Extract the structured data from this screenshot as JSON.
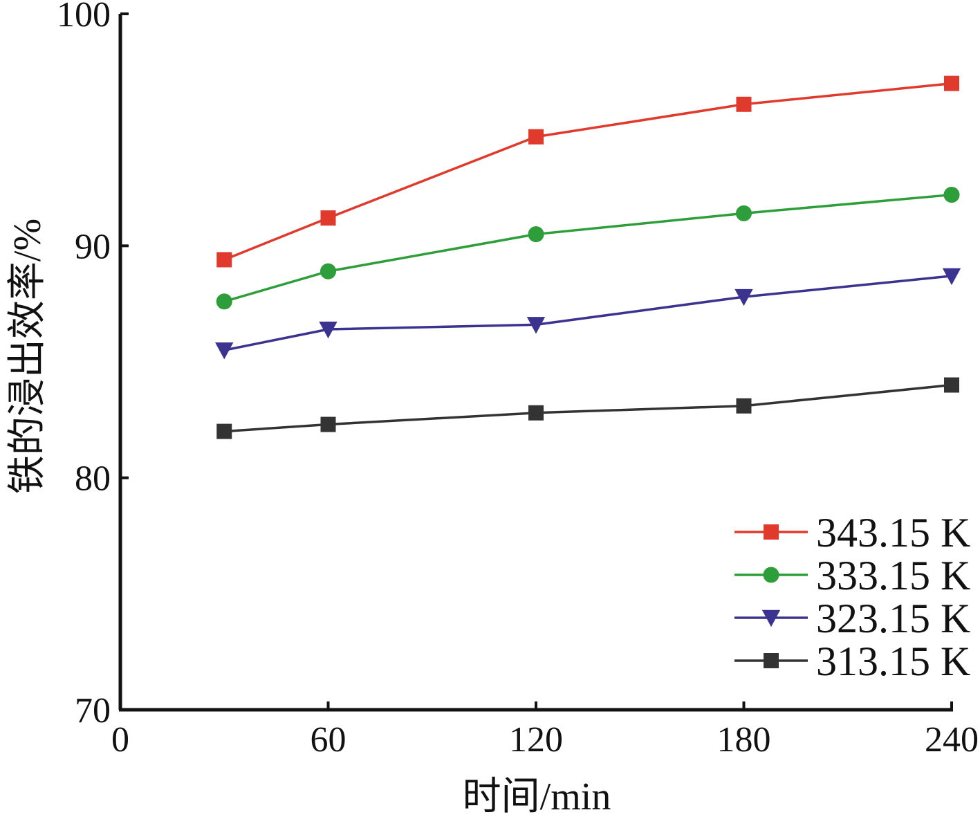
{
  "chart_data": {
    "type": "line",
    "title": "",
    "xlabel": "时间/min",
    "ylabel": "铁的浸出效率/%",
    "xlim": [
      0,
      240
    ],
    "ylim": [
      70,
      100
    ],
    "x_ticks": [
      "0",
      "60",
      "120",
      "180",
      "240"
    ],
    "y_ticks": [
      "70",
      "80",
      "90",
      "100"
    ],
    "grid": false,
    "legend_position": "bottom-right",
    "x": [
      30,
      60,
      120,
      180,
      240
    ],
    "series": [
      {
        "name": "343.15 K",
        "color": "#e03a2c",
        "marker": "square",
        "values": [
          89.4,
          91.2,
          94.7,
          96.1,
          97.0
        ]
      },
      {
        "name": "333.15 K",
        "color": "#2e9e3a",
        "marker": "circle",
        "values": [
          87.6,
          88.9,
          90.5,
          91.4,
          92.2
        ]
      },
      {
        "name": "323.15 K",
        "color": "#3c3290",
        "marker": "triangle-down",
        "values": [
          85.5,
          86.4,
          86.6,
          87.8,
          88.7
        ]
      },
      {
        "name": "313.15 K",
        "color": "#333333",
        "marker": "square",
        "values": [
          82.0,
          82.3,
          82.8,
          83.1,
          84.0
        ]
      }
    ]
  }
}
